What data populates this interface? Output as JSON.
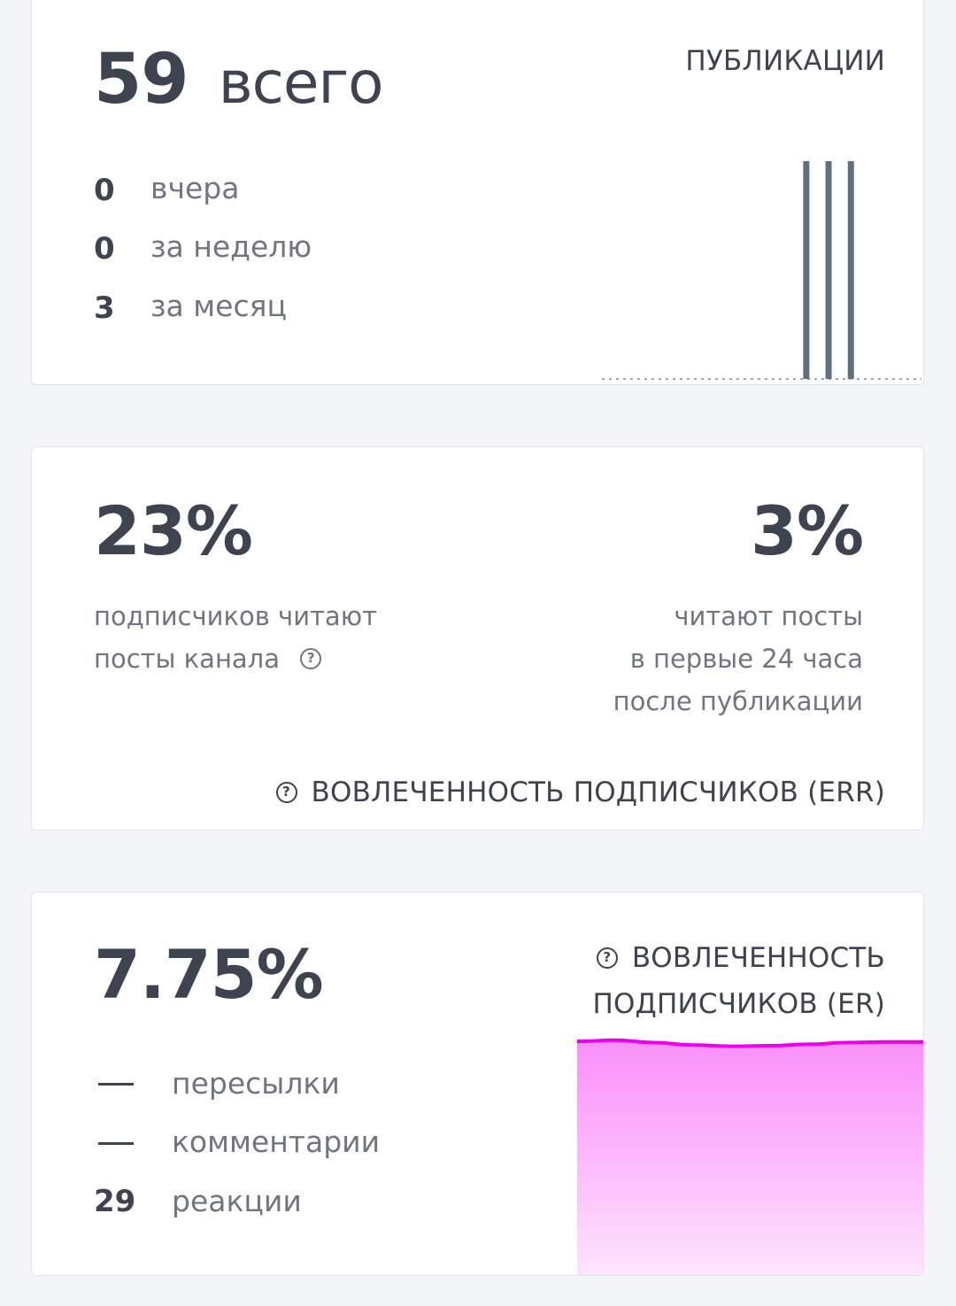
{
  "publications": {
    "total_value": "59",
    "total_label": "всего",
    "title": "ПУБЛИКАЦИИ",
    "rows": [
      {
        "value": "0",
        "label": "вчера"
      },
      {
        "value": "0",
        "label": "за неделю"
      },
      {
        "value": "3",
        "label": "за месяц"
      }
    ],
    "sparkline": {
      "type": "bar",
      "bar_color": "#5f7080",
      "baseline_color": "#9aa3ad",
      "values": [
        0,
        0,
        0,
        0,
        0,
        0,
        0,
        0,
        0,
        0,
        0,
        0,
        0,
        0,
        0,
        0,
        0,
        0,
        0,
        0,
        0,
        0,
        0,
        0,
        0,
        0,
        0,
        1,
        0,
        0,
        1,
        0,
        0,
        1,
        0,
        0,
        0,
        0,
        0,
        0,
        0,
        0,
        0
      ]
    }
  },
  "err": {
    "left_value": "23%",
    "left_line1": "подписчиков читают",
    "left_line2": "посты канала",
    "right_value": "3%",
    "right_lines": [
      "читают посты",
      "в первые 24 часа",
      "после публикации"
    ],
    "footer_label": "ВОВЛЕЧЕННОСТЬ ПОДПИСЧИКОВ (ERR)",
    "help_icon": "question-circle-icon"
  },
  "er": {
    "value": "7.75%",
    "title_line1": "ВОВЛЕЧЕННОСТЬ",
    "title_line2": "ПОДПИСЧИКОВ (ER)",
    "help_icon": "question-circle-icon",
    "rows": [
      {
        "value": "—",
        "label": "пересылки"
      },
      {
        "value": "—",
        "label": "комментарии"
      },
      {
        "value": "29",
        "label": "реакции"
      }
    ],
    "chart_data": {
      "type": "area",
      "line_color": "#ee00ee",
      "fill_top": "#fa8ffa",
      "fill_bottom": "#fde4fd",
      "values": [
        0.97,
        0.975,
        0.965,
        0.955,
        0.95,
        0.952,
        0.958,
        0.965,
        0.968,
        0.968
      ]
    }
  }
}
